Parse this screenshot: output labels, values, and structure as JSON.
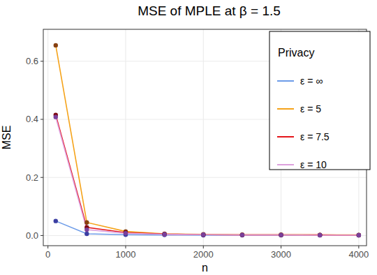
{
  "chart_data": {
    "type": "line",
    "title": "MSE of MPLE at β = 1.5",
    "x_label": "n",
    "y_label": "MSE",
    "x": [
      100,
      500,
      1000,
      1500,
      2000,
      2500,
      3000,
      3500,
      4000
    ],
    "series": [
      {
        "name": "ε = ∞",
        "color": "#6c9be8",
        "values": [
          0.05,
          0.006,
          0.003,
          0.002,
          0.001,
          0.001,
          0.001,
          0.001,
          0.001
        ]
      },
      {
        "name": "ε = 5",
        "color": "#f5a31a",
        "values": [
          0.655,
          0.045,
          0.014,
          0.006,
          0.004,
          0.003,
          0.003,
          0.002,
          0.002
        ]
      },
      {
        "name": "ε = 7.5",
        "color": "#e4151b",
        "values": [
          0.415,
          0.028,
          0.01,
          0.005,
          0.003,
          0.002,
          0.002,
          0.002,
          0.001
        ]
      },
      {
        "name": "ε = 10",
        "color": "#dda0dd",
        "values": [
          0.408,
          0.02,
          0.008,
          0.004,
          0.003,
          0.002,
          0.002,
          0.001,
          0.001
        ]
      }
    ],
    "legend_title": "Privacy",
    "xlim": [
      -60,
      4100
    ],
    "ylim": [
      -0.035,
      0.71
    ],
    "xticks": [
      0,
      1000,
      2000,
      3000,
      4000
    ],
    "yticks": [
      {
        "value": 0,
        "label": "0.0"
      },
      {
        "value": 0.2,
        "label": "0.2"
      },
      {
        "value": 0.4,
        "label": "0.4"
      },
      {
        "value": 0.6,
        "label": "0.6"
      }
    ],
    "grid": true,
    "legend": "top-right",
    "marker": "circle",
    "line_style": "solid"
  }
}
